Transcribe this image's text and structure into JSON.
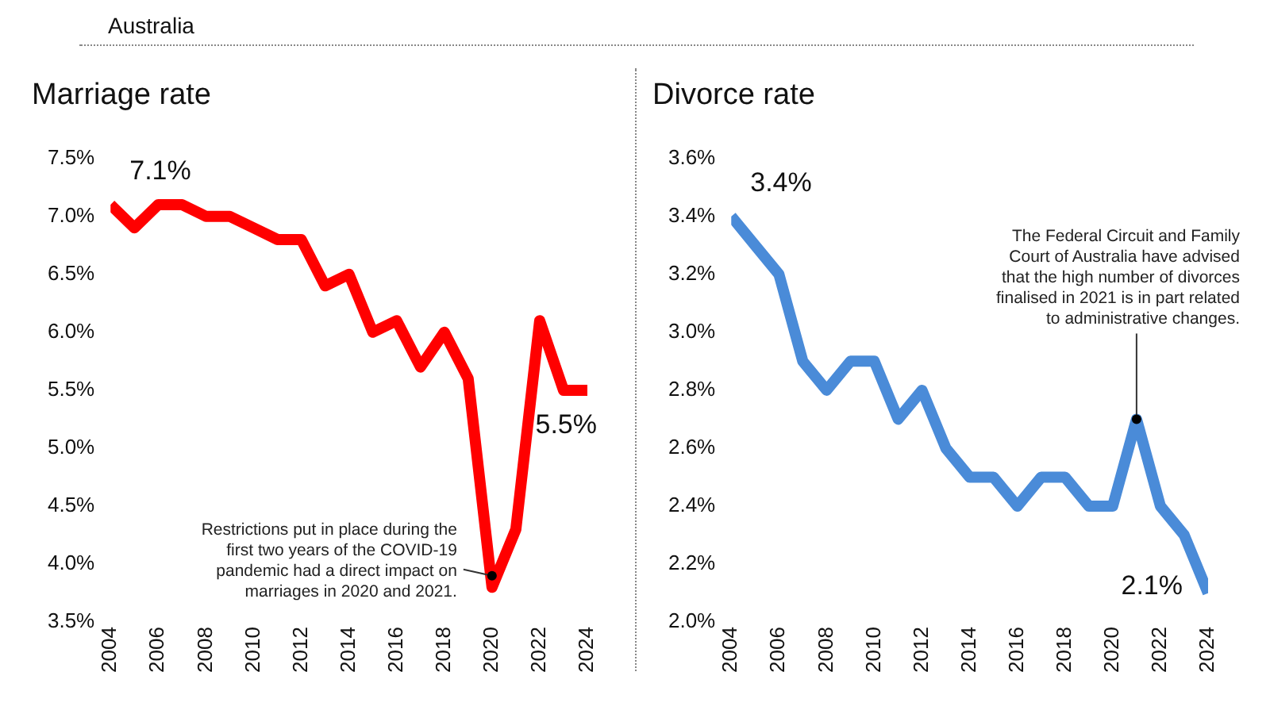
{
  "chart_data": [
    {
      "type": "line",
      "subtitle": "Australia",
      "title": "Marriage rate",
      "x": [
        2004,
        2005,
        2006,
        2007,
        2008,
        2009,
        2010,
        2011,
        2012,
        2013,
        2014,
        2015,
        2016,
        2017,
        2018,
        2019,
        2020,
        2021,
        2022,
        2023,
        2024
      ],
      "series": [
        {
          "color": "#ff0000",
          "values": [
            7.1,
            6.9,
            7.1,
            7.1,
            7.0,
            7.0,
            6.9,
            6.8,
            6.8,
            6.4,
            6.5,
            6.0,
            6.1,
            5.7,
            6.0,
            5.6,
            3.8,
            4.3,
            6.1,
            5.5,
            5.5
          ],
          "value_labels": [
            "7.1%",
            null,
            null,
            null,
            null,
            null,
            null,
            null,
            null,
            null,
            null,
            null,
            null,
            null,
            null,
            null,
            null,
            null,
            null,
            null,
            "5.5%"
          ]
        }
      ],
      "xlim": [
        2004,
        2024
      ],
      "xticks": [
        2004,
        2006,
        2008,
        2010,
        2012,
        2014,
        2016,
        2018,
        2020,
        2022,
        2024
      ],
      "ylim": [
        3.5,
        7.5
      ],
      "yticks": [
        {
          "value": 3.5,
          "label": "3.5%"
        },
        {
          "value": 4.0,
          "label": "4.0%"
        },
        {
          "value": 4.5,
          "label": "4.5%"
        },
        {
          "value": 5.0,
          "label": "5.0%"
        },
        {
          "value": 5.5,
          "label": "5.5%"
        },
        {
          "value": 6.0,
          "label": "6.0%"
        },
        {
          "value": 6.5,
          "label": "6.5%"
        },
        {
          "value": 7.0,
          "label": "7.0%"
        },
        {
          "value": 7.5,
          "label": "7.5%"
        }
      ],
      "annotations": [
        {
          "text": "Restrictions put in place during the first two years of the COVID-19 pandemic had a direct impact on marriages in 2020 and 2021.",
          "x": 2020,
          "y": 3.9
        }
      ],
      "grid": false,
      "legend": false,
      "marker": "none",
      "line_style": "solid"
    },
    {
      "type": "line",
      "title": "Divorce rate",
      "x": [
        2004,
        2005,
        2006,
        2007,
        2008,
        2009,
        2010,
        2011,
        2012,
        2013,
        2014,
        2015,
        2016,
        2017,
        2018,
        2019,
        2020,
        2021,
        2022,
        2023,
        2024
      ],
      "series": [
        {
          "color": "#4a8bd8",
          "values": [
            3.4,
            3.3,
            3.2,
            2.9,
            2.8,
            2.9,
            2.9,
            2.7,
            2.8,
            2.6,
            2.5,
            2.5,
            2.4,
            2.5,
            2.5,
            2.4,
            2.4,
            2.7,
            2.4,
            2.3,
            2.1
          ],
          "value_labels": [
            "3.4%",
            null,
            null,
            null,
            null,
            null,
            null,
            null,
            null,
            null,
            null,
            null,
            null,
            null,
            null,
            null,
            null,
            null,
            null,
            null,
            "2.1%"
          ]
        }
      ],
      "xlim": [
        2004,
        2024
      ],
      "xticks": [
        2004,
        2006,
        2008,
        2010,
        2012,
        2014,
        2016,
        2018,
        2020,
        2022,
        2024
      ],
      "ylim": [
        2.0,
        3.6
      ],
      "yticks": [
        {
          "value": 2.0,
          "label": "2.0%"
        },
        {
          "value": 2.2,
          "label": "2.2%"
        },
        {
          "value": 2.4,
          "label": "2.4%"
        },
        {
          "value": 2.6,
          "label": "2.6%"
        },
        {
          "value": 2.8,
          "label": "2.8%"
        },
        {
          "value": 3.0,
          "label": "3.0%"
        },
        {
          "value": 3.2,
          "label": "3.2%"
        },
        {
          "value": 3.4,
          "label": "3.4%"
        },
        {
          "value": 3.6,
          "label": "3.6%"
        }
      ],
      "annotations": [
        {
          "text": "The Federal Circuit and Family Court of Australia have advised that the high number of divorces finalised in 2021 is in part related to administrative changes.",
          "x": 2021,
          "y": 2.7
        }
      ],
      "grid": false,
      "legend": false,
      "marker": "none",
      "line_style": "solid"
    }
  ]
}
